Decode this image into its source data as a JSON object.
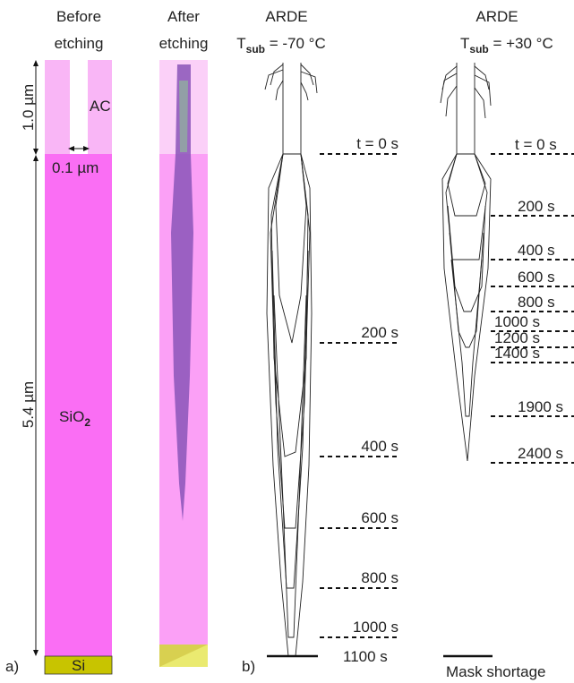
{
  "panel_a": {
    "label": "a)",
    "before": {
      "line1": "Before",
      "line2": "etching"
    },
    "after": {
      "line1": "After",
      "line2": "etching"
    },
    "mask_height": "1.0 µm",
    "trench_width": "0.1 µm",
    "mask_name": "AC",
    "oxide_height": "5.4 µm",
    "oxide": {
      "main": "SiO",
      "sub": "2"
    },
    "substrate": "Si"
  },
  "panel_b": {
    "label": "b)",
    "left": {
      "title": "ARDE",
      "temp": {
        "main": "T",
        "sub": "sub",
        "rest": " = -70 °C"
      },
      "times": [
        "t = 0 s",
        "200 s",
        "400 s",
        "600 s",
        "800 s",
        "1000 s",
        "1100 s"
      ]
    },
    "right": {
      "title": "ARDE",
      "temp": {
        "main": "T",
        "sub": "sub",
        "rest": " = +30 °C"
      },
      "times": [
        "t = 0 s",
        "200 s",
        "400 s",
        "600 s",
        "800 s",
        "1000 s",
        "1200 s",
        "1400 s",
        "1900 s",
        "2400 s"
      ],
      "note": "Mask shortage"
    }
  }
}
